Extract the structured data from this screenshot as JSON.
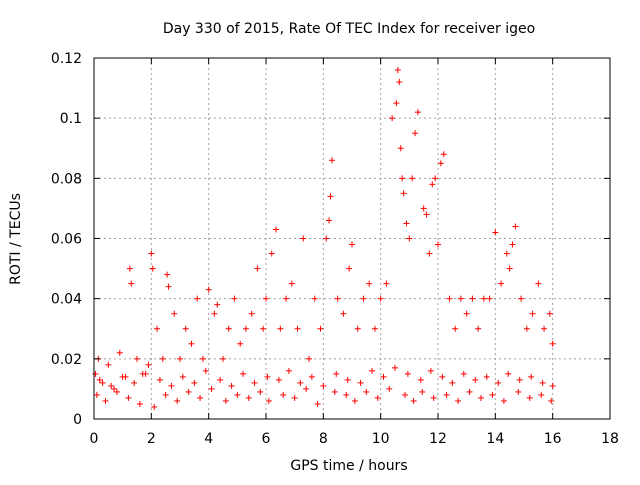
{
  "chart_data": {
    "type": "scatter",
    "title": "Day 330 of 2015, Rate Of TEC Index for receiver igeo",
    "xlabel": "GPS time / hours",
    "ylabel": "ROTI / TECUs",
    "xlim": [
      0,
      18
    ],
    "ylim": [
      0,
      0.12
    ],
    "x_ticks": [
      "0",
      "2",
      "4",
      "6",
      "8",
      "10",
      "12",
      "14",
      "16",
      "18"
    ],
    "y_ticks": [
      "0",
      "0.02",
      "0.04",
      "0.06",
      "0.08",
      "0.1",
      "0.12"
    ],
    "grid": true,
    "marker": "+",
    "color": "#ff0000",
    "series": [
      {
        "name": "ROTI",
        "x": [
          0.05,
          0.15,
          0.3,
          0.5,
          0.7,
          0.9,
          1.1,
          1.25,
          1.3,
          1.5,
          1.7,
          1.9,
          2.0,
          2.05,
          2.2,
          2.4,
          2.55,
          2.6,
          2.8,
          3.0,
          3.2,
          3.4,
          3.6,
          3.8,
          4.0,
          4.2,
          4.3,
          4.5,
          4.7,
          4.9,
          5.1,
          5.3,
          5.5,
          5.7,
          5.9,
          6.0,
          6.2,
          6.35,
          6.5,
          6.7,
          6.9,
          7.1,
          7.3,
          7.5,
          7.7,
          7.9,
          8.1,
          8.2,
          8.25,
          8.3,
          8.5,
          8.7,
          8.9,
          9.0,
          9.2,
          9.4,
          9.6,
          9.8,
          10.0,
          10.2,
          10.4,
          10.55,
          10.6,
          10.65,
          10.7,
          10.75,
          10.8,
          10.9,
          11.0,
          11.1,
          11.2,
          11.3,
          11.5,
          11.6,
          11.7,
          11.8,
          11.9,
          12.0,
          12.1,
          12.2,
          12.4,
          12.6,
          12.8,
          13.0,
          13.2,
          13.4,
          13.6,
          13.8,
          14.0,
          14.2,
          14.4,
          14.5,
          14.6,
          14.7,
          14.9,
          15.1,
          15.3,
          15.5,
          15.7,
          15.9,
          16.0,
          0.1,
          0.4,
          0.8,
          1.2,
          1.6,
          2.1,
          2.5,
          2.9,
          3.3,
          3.7,
          4.1,
          4.6,
          5.0,
          5.4,
          5.8,
          6.1,
          6.6,
          7.0,
          7.4,
          7.8,
          8.4,
          8.8,
          9.1,
          9.5,
          9.9,
          10.3,
          10.85,
          11.15,
          11.45,
          11.85,
          12.3,
          12.7,
          13.1,
          13.5,
          13.9,
          14.3,
          14.8,
          15.2,
          15.6,
          15.95,
          0.2,
          0.6,
          1.0,
          1.4,
          1.8,
          2.3,
          2.7,
          3.1,
          3.5,
          3.9,
          4.4,
          4.8,
          5.2,
          5.6,
          6.05,
          6.45,
          6.8,
          7.2,
          7.6,
          8.0,
          8.45,
          8.85,
          9.3,
          9.7,
          10.1,
          10.5,
          10.95,
          11.4,
          11.75,
          12.15,
          12.5,
          12.9,
          13.3,
          13.7,
          14.1,
          14.45,
          14.85,
          15.25,
          15.65,
          16.0
        ],
        "y": [
          0.015,
          0.02,
          0.012,
          0.018,
          0.01,
          0.022,
          0.014,
          0.05,
          0.045,
          0.02,
          0.015,
          0.018,
          0.055,
          0.05,
          0.03,
          0.02,
          0.048,
          0.044,
          0.035,
          0.02,
          0.03,
          0.025,
          0.04,
          0.02,
          0.043,
          0.035,
          0.038,
          0.02,
          0.03,
          0.04,
          0.025,
          0.03,
          0.035,
          0.05,
          0.03,
          0.04,
          0.055,
          0.063,
          0.03,
          0.04,
          0.045,
          0.03,
          0.06,
          0.02,
          0.04,
          0.03,
          0.06,
          0.066,
          0.074,
          0.086,
          0.04,
          0.035,
          0.05,
          0.058,
          0.03,
          0.04,
          0.045,
          0.03,
          0.04,
          0.045,
          0.1,
          0.105,
          0.116,
          0.112,
          0.09,
          0.08,
          0.075,
          0.065,
          0.06,
          0.08,
          0.095,
          0.102,
          0.07,
          0.068,
          0.055,
          0.078,
          0.08,
          0.058,
          0.085,
          0.088,
          0.04,
          0.03,
          0.04,
          0.035,
          0.04,
          0.03,
          0.04,
          0.04,
          0.062,
          0.045,
          0.055,
          0.05,
          0.058,
          0.064,
          0.04,
          0.03,
          0.035,
          0.045,
          0.03,
          0.035,
          0.025,
          0.008,
          0.006,
          0.009,
          0.007,
          0.005,
          0.004,
          0.008,
          0.006,
          0.009,
          0.007,
          0.01,
          0.006,
          0.008,
          0.007,
          0.009,
          0.006,
          0.008,
          0.007,
          0.01,
          0.005,
          0.009,
          0.008,
          0.006,
          0.009,
          0.007,
          0.01,
          0.008,
          0.006,
          0.009,
          0.007,
          0.008,
          0.006,
          0.009,
          0.007,
          0.008,
          0.006,
          0.009,
          0.007,
          0.008,
          0.006,
          0.013,
          0.011,
          0.014,
          0.012,
          0.015,
          0.013,
          0.011,
          0.014,
          0.012,
          0.016,
          0.013,
          0.011,
          0.015,
          0.012,
          0.014,
          0.013,
          0.016,
          0.012,
          0.014,
          0.011,
          0.015,
          0.013,
          0.012,
          0.016,
          0.014,
          0.017,
          0.015,
          0.013,
          0.016,
          0.014,
          0.012,
          0.015,
          0.013,
          0.014,
          0.012,
          0.015,
          0.013,
          0.014,
          0.012,
          0.011
        ]
      }
    ]
  }
}
